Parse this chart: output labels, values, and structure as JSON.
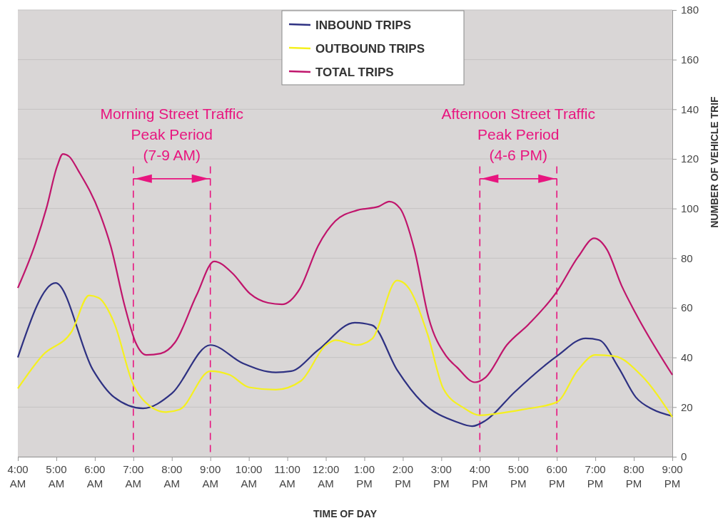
{
  "chart_data": {
    "type": "line",
    "xlabel": "TIME OF DAY",
    "ylabel": "NUMBER OF VEHICLE TRIF",
    "xlim": [
      4,
      21
    ],
    "xticks": [
      {
        "value": 4,
        "label": "4:00\nAM"
      },
      {
        "value": 5,
        "label": "5:00\nAM"
      },
      {
        "value": 6,
        "label": "6:00\nAM"
      },
      {
        "value": 7,
        "label": "7:00\nAM"
      },
      {
        "value": 8,
        "label": "8:00\nAM"
      },
      {
        "value": 9,
        "label": "9:00\nAM"
      },
      {
        "value": 10,
        "label": "10:00\nAM"
      },
      {
        "value": 11,
        "label": "11:00\nAM"
      },
      {
        "value": 12,
        "label": "12:00\nAM"
      },
      {
        "value": 13,
        "label": "1:00\nPM"
      },
      {
        "value": 14,
        "label": "2:00\nPM"
      },
      {
        "value": 15,
        "label": "3:00\nPM"
      },
      {
        "value": 16,
        "label": "4:00\nPM"
      },
      {
        "value": 17,
        "label": "5:00\nPM"
      },
      {
        "value": 18,
        "label": "6:00\nPM"
      },
      {
        "value": 19,
        "label": "7:00\nPM"
      },
      {
        "value": 20,
        "label": "8:00\nPM"
      },
      {
        "value": 21,
        "label": "9:00\nPM"
      }
    ],
    "ylim": [
      0,
      180
    ],
    "yticks": [
      0,
      20,
      40,
      60,
      80,
      100,
      120,
      140,
      160,
      180
    ],
    "grid": "y",
    "legend": "top",
    "marker": "none",
    "line_style": "solid",
    "series": [
      {
        "name": "INBOUND TRIPS",
        "color": "#2e3182",
        "x": [
          4,
          4.98,
          5.95,
          6.5,
          7.25,
          8,
          9,
          9.85,
          10.7,
          11.1,
          11.8,
          12.75,
          13.2,
          13.85,
          14.5,
          15.4,
          15.8,
          16.15,
          16.9,
          18,
          18.75,
          19.1,
          19.6,
          20.05,
          20.5,
          21
        ],
        "values": [
          40,
          70,
          35,
          24,
          19.5,
          25.5,
          45,
          37.6,
          34,
          34.5,
          43,
          54,
          53,
          35,
          22,
          14,
          12.3,
          14.6,
          26,
          40.5,
          47.7,
          47,
          36,
          24,
          19,
          16.4
        ]
      },
      {
        "name": "OUTBOUND TRIPS",
        "color": "#f5f01e",
        "x": [
          4,
          4.65,
          5.4,
          5.85,
          6.1,
          6.5,
          7,
          7.25,
          7.85,
          8.2,
          9,
          9.5,
          10,
          10.7,
          11.35,
          12,
          12.25,
          12.8,
          13.2,
          13.85,
          14.1,
          14.65,
          15.05,
          15.6,
          16,
          16.5,
          17.1,
          18,
          18.55,
          19,
          19.5,
          20.2,
          21
        ],
        "values": [
          27.5,
          41,
          50.5,
          65,
          64,
          54,
          29,
          23,
          18,
          19,
          34.5,
          33,
          28,
          27,
          30.5,
          45,
          47,
          45,
          47.5,
          71,
          69,
          49,
          27.5,
          19.5,
          16.7,
          17.5,
          19,
          22,
          35,
          41,
          40.5,
          32.7,
          16
        ]
      },
      {
        "name": "TOTAL TRIPS",
        "color": "#c0156c",
        "x": [
          4,
          4.46,
          4.74,
          5.02,
          5.17,
          5.33,
          5.58,
          6.13,
          6.41,
          6.78,
          7.06,
          7.34,
          7.71,
          8.08,
          8.64,
          9.1,
          9.57,
          10.03,
          10.5,
          10.86,
          11.33,
          11.8,
          12.25,
          12.81,
          13.37,
          13.65,
          13.93,
          14.3,
          14.67,
          15.13,
          15.41,
          15.87,
          16.15,
          16.7,
          17.27,
          17.99,
          18.56,
          18.97,
          19.3,
          19.68,
          20.05,
          21
        ],
        "values": [
          68,
          86,
          100,
          117,
          122,
          121,
          115,
          98,
          85,
          60.5,
          46,
          41,
          41.6,
          46,
          65,
          78.7,
          74,
          65.7,
          62,
          61.4,
          67.8,
          85,
          95,
          99.3,
          100.8,
          102.8,
          100,
          83.5,
          56,
          40.5,
          36,
          30,
          32,
          45,
          53.4,
          66.3,
          80.7,
          88,
          83.5,
          69,
          57.7,
          33
        ]
      }
    ],
    "ref_lines": [
      {
        "axis": "x",
        "value": 7,
        "color": "#e8157f",
        "line_style": "dashed"
      },
      {
        "axis": "x",
        "value": 9,
        "color": "#e8157f",
        "line_style": "dashed"
      },
      {
        "axis": "x",
        "value": 16,
        "color": "#e8157f",
        "line_style": "dashed"
      },
      {
        "axis": "x",
        "value": 18,
        "color": "#e8157f",
        "line_style": "dashed"
      }
    ],
    "annotations": [
      "Morning Street Traffic\nPeak Period\n(7-9 AM)",
      "Afternoon Street Traffic\nPeak Period\n(4-6 PM)"
    ]
  }
}
